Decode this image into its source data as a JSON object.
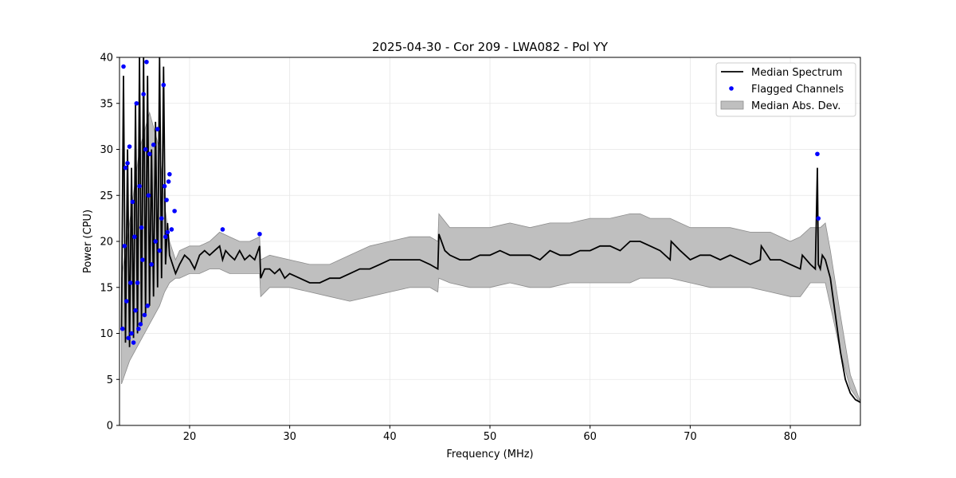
{
  "chart_data": {
    "type": "line",
    "title": "2025-04-30 - Cor 209 - LWA082 - Pol YY",
    "xlabel": "Frequency (MHz)",
    "ylabel": "Power (CPU)",
    "xlim": [
      13.0,
      87.0
    ],
    "ylim": [
      0,
      40
    ],
    "xticks": [
      20,
      30,
      40,
      50,
      60,
      70,
      80
    ],
    "yticks": [
      0,
      5,
      10,
      15,
      20,
      25,
      30,
      35,
      40
    ],
    "grid": true,
    "legend_position": "top-right",
    "legend": [
      "Median Spectrum",
      "Flagged Channels",
      "Median Abs. Dev."
    ],
    "colors": {
      "line": "#000000",
      "flagged": "#0000ff",
      "band": "#bfbfbf",
      "band_edge": "#8c8c8c"
    },
    "median_spectrum": {
      "x": [
        13.2,
        13.4,
        13.6,
        13.8,
        14.0,
        14.2,
        14.4,
        14.6,
        14.8,
        15.0,
        15.2,
        15.4,
        15.6,
        15.8,
        16.0,
        16.2,
        16.4,
        16.6,
        16.8,
        17.0,
        17.2,
        17.4,
        17.6,
        17.8,
        18.0,
        18.3,
        18.6,
        19.0,
        19.5,
        20.0,
        20.5,
        21.0,
        21.5,
        22.0,
        22.5,
        23.0,
        23.3,
        23.6,
        24.0,
        24.5,
        25.0,
        25.5,
        26.0,
        26.5,
        27.0,
        27.1,
        27.5,
        28.0,
        28.5,
        29.0,
        29.5,
        30.0,
        31.0,
        32.0,
        33.0,
        34.0,
        35.0,
        36.0,
        37.0,
        38.0,
        39.0,
        40.0,
        41.0,
        42.0,
        43.0,
        44.0,
        44.8,
        44.9,
        45.5,
        46.0,
        47.0,
        48.0,
        49.0,
        50.0,
        51.0,
        52.0,
        53.0,
        54.0,
        55.0,
        56.0,
        57.0,
        58.0,
        59.0,
        60.0,
        61.0,
        62.0,
        63.0,
        64.0,
        65.0,
        66.0,
        67.0,
        68.0,
        68.1,
        69.0,
        70.0,
        71.0,
        72.0,
        73.0,
        74.0,
        75.0,
        76.0,
        77.0,
        77.1,
        78.0,
        79.0,
        80.0,
        81.0,
        81.2,
        82.0,
        82.5,
        82.7,
        82.8,
        83.0,
        83.2,
        83.5,
        84.0,
        84.5,
        85.0,
        85.5,
        86.0,
        86.5,
        87.0
      ],
      "y": [
        10.5,
        38.0,
        9.0,
        30.0,
        8.5,
        28.0,
        9.5,
        35.0,
        10.0,
        40.0,
        11.0,
        40.0,
        12.0,
        38.0,
        13.0,
        30.0,
        14.0,
        33.0,
        15.0,
        40.0,
        16.0,
        39.0,
        17.5,
        22.0,
        18.5,
        17.5,
        16.5,
        17.5,
        18.5,
        18.0,
        17.0,
        18.5,
        19.0,
        18.5,
        19.0,
        19.5,
        18.0,
        19.0,
        18.5,
        18.0,
        19.0,
        18.0,
        18.5,
        18.0,
        19.5,
        16.0,
        17.0,
        17.0,
        16.5,
        17.0,
        16.0,
        16.5,
        16.0,
        15.5,
        15.5,
        16.0,
        16.0,
        16.5,
        17.0,
        17.0,
        17.5,
        18.0,
        18.0,
        18.0,
        18.0,
        17.5,
        17.0,
        20.8,
        19.0,
        18.5,
        18.0,
        18.0,
        18.5,
        18.5,
        19.0,
        18.5,
        18.5,
        18.5,
        18.0,
        19.0,
        18.5,
        18.5,
        19.0,
        19.0,
        19.5,
        19.5,
        19.0,
        20.0,
        20.0,
        19.5,
        19.0,
        18.0,
        20.0,
        19.0,
        18.0,
        18.5,
        18.5,
        18.0,
        18.5,
        18.0,
        17.5,
        18.0,
        19.5,
        18.0,
        18.0,
        17.5,
        17.0,
        18.5,
        17.5,
        17.0,
        28.0,
        17.5,
        17.0,
        18.5,
        18.0,
        16.0,
        12.0,
        8.0,
        5.0,
        3.5,
        2.8,
        2.5
      ]
    },
    "median_abs_dev": {
      "x": [
        13.2,
        14.0,
        15.0,
        16.0,
        17.0,
        17.5,
        18.0,
        18.6,
        19.0,
        20.0,
        21.0,
        22.0,
        23.0,
        24.0,
        25.0,
        26.0,
        27.0,
        27.1,
        28.0,
        30.0,
        32.0,
        34.0,
        36.0,
        38.0,
        40.0,
        42.0,
        44.0,
        44.8,
        44.9,
        46.0,
        48.0,
        50.0,
        52.0,
        54.0,
        56.0,
        58.0,
        60.0,
        62.0,
        64.0,
        65.0,
        66.0,
        68.0,
        70.0,
        72.0,
        74.0,
        76.0,
        78.0,
        80.0,
        81.0,
        82.0,
        83.0,
        83.5,
        84.0,
        85.0,
        86.0,
        87.0
      ],
      "lower": [
        4.5,
        7.0,
        9.0,
        11.0,
        13.0,
        14.5,
        15.5,
        16.0,
        16.0,
        16.5,
        16.5,
        17.0,
        17.0,
        16.5,
        16.5,
        16.5,
        16.5,
        14.0,
        15.0,
        15.0,
        14.5,
        14.0,
        13.5,
        14.0,
        14.5,
        15.0,
        15.0,
        14.5,
        16.0,
        15.5,
        15.0,
        15.0,
        15.5,
        15.0,
        15.0,
        15.5,
        15.5,
        15.5,
        15.5,
        16.0,
        16.0,
        16.0,
        15.5,
        15.0,
        15.0,
        15.0,
        14.5,
        14.0,
        14.0,
        15.5,
        15.5,
        15.5,
        13.0,
        8.0,
        4.0,
        2.4
      ],
      "upper": [
        16.0,
        22.0,
        30.0,
        34.0,
        30.0,
        24.0,
        20.0,
        18.0,
        19.0,
        19.5,
        19.5,
        20.0,
        21.0,
        20.5,
        20.0,
        20.0,
        20.5,
        18.0,
        18.5,
        18.0,
        17.5,
        17.5,
        18.5,
        19.5,
        20.0,
        20.5,
        20.5,
        20.0,
        23.0,
        21.5,
        21.5,
        21.5,
        22.0,
        21.5,
        22.0,
        22.0,
        22.5,
        22.5,
        23.0,
        23.0,
        22.5,
        22.5,
        21.5,
        21.5,
        21.5,
        21.0,
        21.0,
        20.0,
        20.5,
        21.5,
        21.5,
        22.0,
        19.0,
        12.0,
        5.5,
        2.6
      ]
    },
    "flagged_channels": {
      "x": [
        13.3,
        13.4,
        13.5,
        13.6,
        13.7,
        13.8,
        13.9,
        14.0,
        14.1,
        14.2,
        14.3,
        14.4,
        14.5,
        14.6,
        14.7,
        14.8,
        14.9,
        15.0,
        15.1,
        15.2,
        15.3,
        15.4,
        15.5,
        15.6,
        15.7,
        15.8,
        15.9,
        16.0,
        16.2,
        16.4,
        16.6,
        16.8,
        17.0,
        17.2,
        17.4,
        17.5,
        17.6,
        17.7,
        17.8,
        17.9,
        18.0,
        18.2,
        18.5,
        23.3,
        27.0,
        82.7,
        82.8
      ],
      "y": [
        10.5,
        39.0,
        19.5,
        28.0,
        13.5,
        28.5,
        9.5,
        30.3,
        15.5,
        10.0,
        24.3,
        9.0,
        20.5,
        12.5,
        35.0,
        15.5,
        10.5,
        26.0,
        11.0,
        21.5,
        18.0,
        36.0,
        12.0,
        30.0,
        39.5,
        13.0,
        25.0,
        29.5,
        17.5,
        30.5,
        20.0,
        32.2,
        19.0,
        22.5,
        37.0,
        26.0,
        20.5,
        24.5,
        21.0,
        26.5,
        27.3,
        21.3,
        23.3,
        21.3,
        20.8,
        29.5,
        22.5
      ]
    }
  }
}
